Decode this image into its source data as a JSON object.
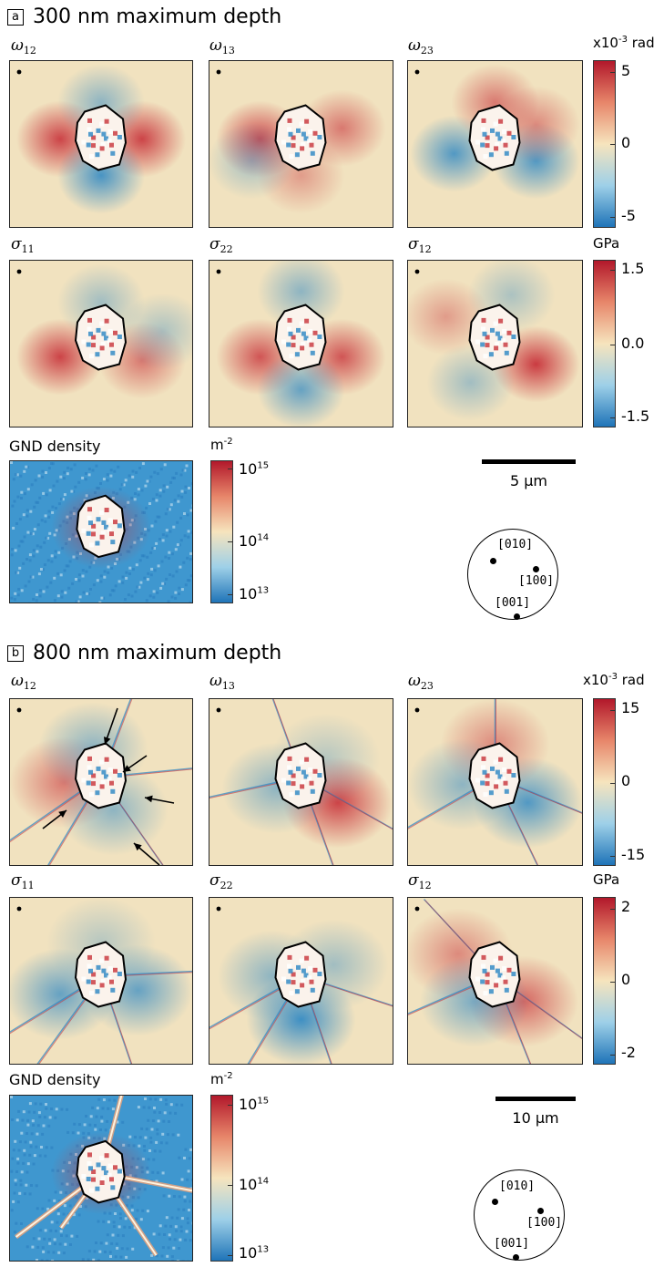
{
  "panel_a": {
    "letter": "a",
    "title": "300 nm maximum depth",
    "labels": {
      "w12": {
        "sym": "ω",
        "sub": "12"
      },
      "w13": {
        "sym": "ω",
        "sub": "13"
      },
      "w23": {
        "sym": "ω",
        "sub": "23"
      },
      "s11": {
        "sym": "σ",
        "sub": "11"
      },
      "s22": {
        "sym": "σ",
        "sub": "22"
      },
      "s12": {
        "sym": "σ",
        "sub": "12"
      },
      "gnd": "GND density"
    },
    "rot_cbar": {
      "unit_pre": "x10",
      "unit_exp": "-3",
      "unit_post": " rad",
      "top": "5",
      "mid": "0",
      "bottom": "-5"
    },
    "stress_cbar": {
      "unit": "GPa",
      "top": "1.5",
      "mid": "0.0",
      "bottom": "-1.5"
    },
    "gnd_cbar": {
      "unit_pre": "m",
      "unit_exp": "-2",
      "top_base": "10",
      "top_exp": "15",
      "mid_base": "10",
      "mid_exp": "14",
      "bottom_base": "10",
      "bottom_exp": "13"
    },
    "scale": "5 µm",
    "orientation": {
      "a": "[010]",
      "b": "[100]",
      "c": "[001]"
    }
  },
  "panel_b": {
    "letter": "b",
    "title": "800 nm maximum depth",
    "labels": {
      "w12": {
        "sym": "ω",
        "sub": "12"
      },
      "w13": {
        "sym": "ω",
        "sub": "13"
      },
      "w23": {
        "sym": "ω",
        "sub": "23"
      },
      "s11": {
        "sym": "σ",
        "sub": "11"
      },
      "s22": {
        "sym": "σ",
        "sub": "22"
      },
      "s12": {
        "sym": "σ",
        "sub": "12"
      },
      "gnd": "GND density"
    },
    "rot_cbar": {
      "unit_pre": "x10",
      "unit_exp": "-3",
      "unit_post": " rad",
      "top": "15",
      "mid": "0",
      "bottom": "-15"
    },
    "stress_cbar": {
      "unit": "GPa",
      "top": "2",
      "mid": "0",
      "bottom": "-2"
    },
    "gnd_cbar": {
      "unit_pre": "m",
      "unit_exp": "-2",
      "top_base": "10",
      "top_exp": "15",
      "mid_base": "10",
      "mid_exp": "14",
      "bottom_base": "10",
      "bottom_exp": "13"
    },
    "scale": "10 µm",
    "orientation": {
      "a": "[010]",
      "b": "[100]",
      "c": "[001]"
    }
  },
  "colors": {
    "map_bg": "#f1e2bf",
    "red": "#c8323a",
    "blue": "#2a86c4",
    "gnd_bg": "#3f97cf",
    "outline": "#000000"
  }
}
